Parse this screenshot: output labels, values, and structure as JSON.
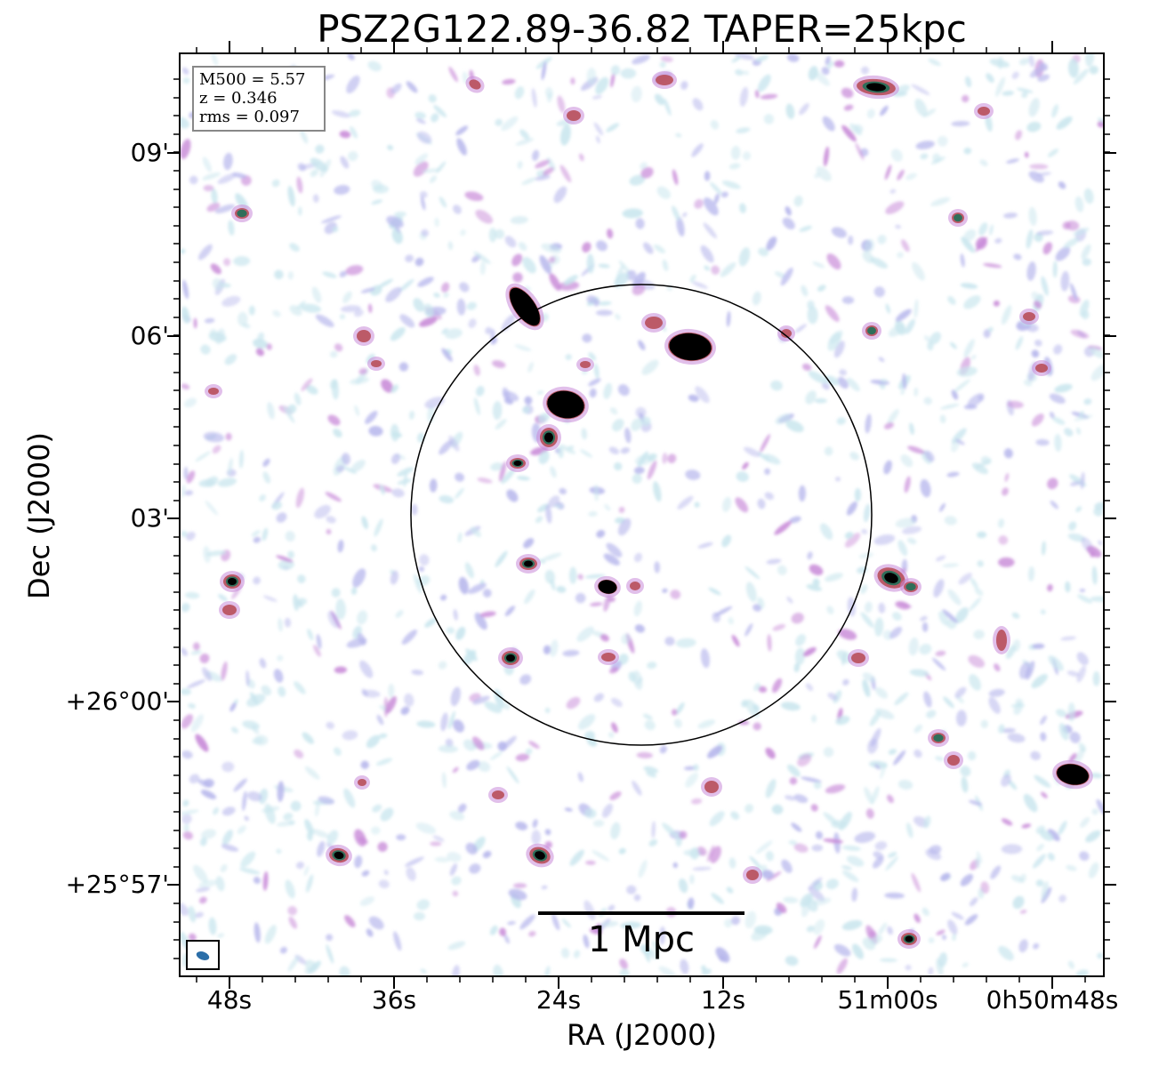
{
  "figure": {
    "title": "PSZ2G122.89-36.82 TAPER=25kpc",
    "xlabel": "RA (J2000)",
    "ylabel": "Dec (J2000)",
    "x_tick_labels": [
      "48s",
      "36s",
      "24s",
      "12s",
      "51m00s",
      "0h50m48s"
    ],
    "y_tick_labels": [
      "09'",
      "06'",
      "03'",
      "+26°00'",
      "+25°57'"
    ],
    "info": {
      "line1": "M500 = 5.57",
      "line2": "z = 0.346",
      "line3": "rms = 0.097"
    },
    "scale_bar_label": "1 Mpc",
    "colors": {
      "noise_light": "#c9e6ee",
      "noise_lavender": "#b6b6ec",
      "faint_magenta": "#c88ad8",
      "source_red": "#b8505a",
      "source_green": "#2f6e5a",
      "source_core": "#000000",
      "beam": "#2b6ea8",
      "frame": "#000000"
    }
  }
}
